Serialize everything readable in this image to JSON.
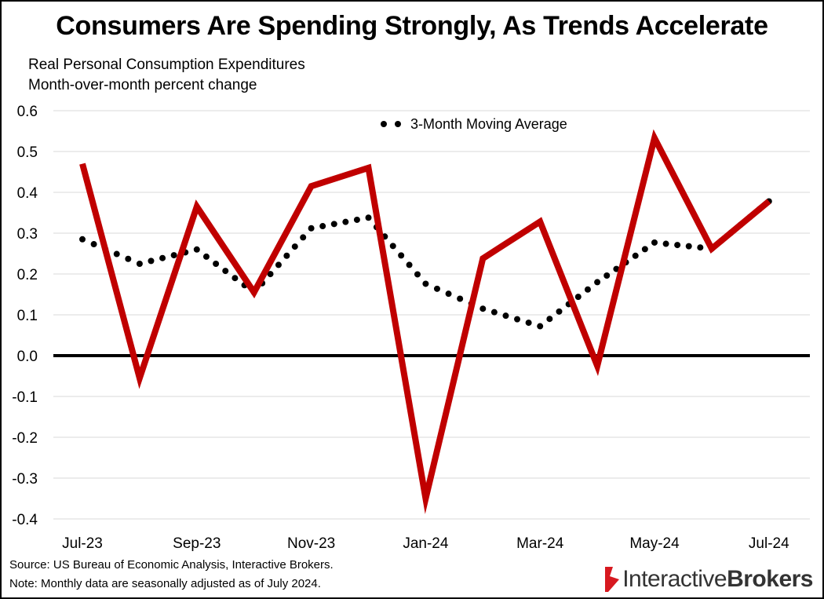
{
  "title": "Consumers Are Spending Strongly, As Trends Accelerate",
  "subtitle_line1": "Real Personal Consumption Expenditures",
  "subtitle_line2": "Month-over-month percent change",
  "footnote_source": "Source: US Bureau of Economic Analysis, Interactive Brokers.",
  "footnote_note": "Note: Monthly data are seasonally adjusted as of July 2024.",
  "logo": {
    "word1": "Interactive",
    "word2": "Brokers",
    "mark_color": "#d71920"
  },
  "colors": {
    "line": "#c00000",
    "dots": "#000000",
    "grid": "#d9d9d9",
    "zero_line": "#000000"
  },
  "chart_data": {
    "type": "line",
    "categories": [
      "Jul-23",
      "Aug-23",
      "Sep-23",
      "Oct-23",
      "Nov-23",
      "Dec-23",
      "Jan-24",
      "Feb-24",
      "Mar-24",
      "Apr-24",
      "May-24",
      "Jun-24",
      "Jul-24"
    ],
    "tick_labels": [
      "Jul-23",
      "Sep-23",
      "Nov-23",
      "Jan-24",
      "Mar-24",
      "May-24",
      "Jul-24"
    ],
    "ylim": [
      -0.4,
      0.6
    ],
    "yticks": [
      "0.6",
      "0.5",
      "0.4",
      "0.3",
      "0.2",
      "0.1",
      "0.0",
      "-0.1",
      "-0.2",
      "-0.3",
      "-0.4"
    ],
    "grid": true,
    "legend_position": "top-center",
    "series": [
      {
        "name": "",
        "style": "solid",
        "values": [
          0.47,
          -0.055,
          0.365,
          0.155,
          0.415,
          0.46,
          -0.35,
          0.238,
          0.328,
          -0.025,
          0.533,
          0.262,
          0.378
        ]
      },
      {
        "name": "3-Month Moving Average",
        "style": "dotted",
        "values": [
          0.285,
          0.225,
          0.26,
          0.155,
          0.312,
          0.338,
          0.176,
          0.115,
          0.072,
          0.18,
          0.277,
          0.262,
          0.378
        ]
      }
    ]
  }
}
